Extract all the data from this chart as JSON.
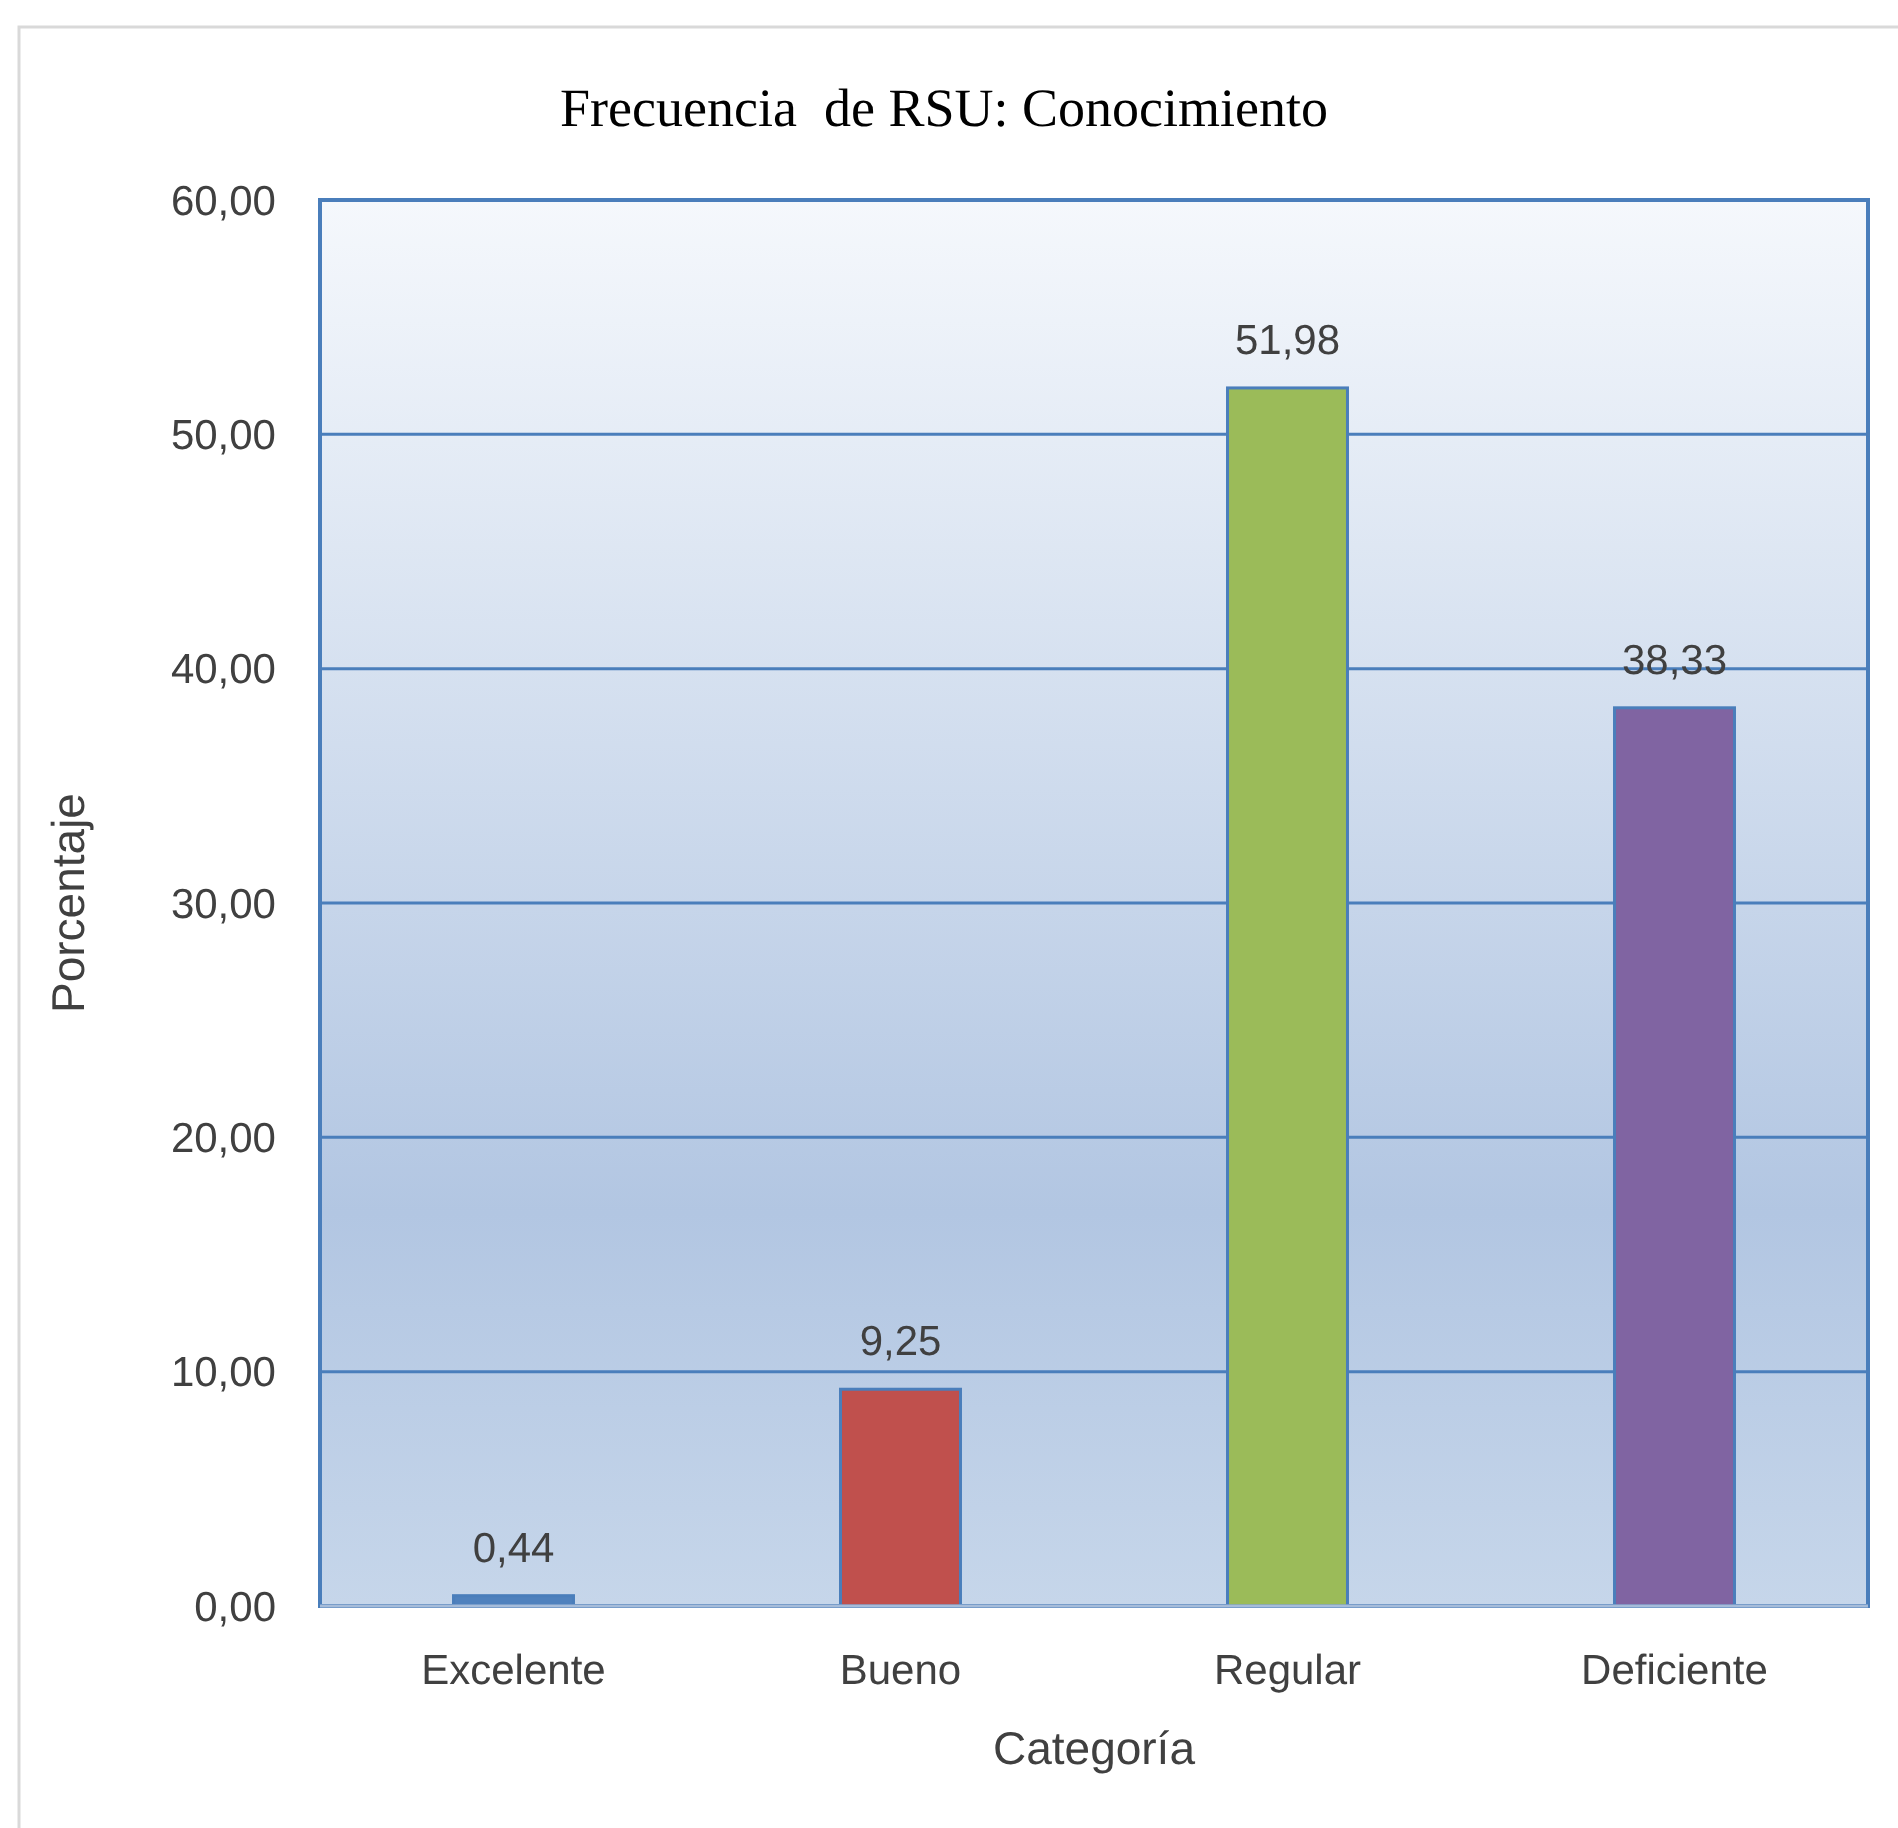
{
  "chart_data": {
    "type": "bar",
    "title": "Frecuencia  de RSU: Conocimiento",
    "xlabel": "Categoría",
    "ylabel": "Porcentaje",
    "categories": [
      "Excelente",
      "Bueno",
      "Regular",
      "Deficiente"
    ],
    "values": [
      0.44,
      9.25,
      51.98,
      38.33
    ],
    "colors": [
      "#4f81bd",
      "#c0504d",
      "#9bbb59",
      "#8064a2"
    ],
    "value_labels": [
      "0,44",
      "9,25",
      "51,98",
      "38,33"
    ],
    "ylim": [
      0,
      60
    ],
    "yticks": [
      {
        "value": 0,
        "label": "0,00"
      },
      {
        "value": 10,
        "label": "10,00"
      },
      {
        "value": 20,
        "label": "20,00"
      },
      {
        "value": 30,
        "label": "30,00"
      },
      {
        "value": 40,
        "label": "40,00"
      },
      {
        "value": 50,
        "label": "50,00"
      },
      {
        "value": 60,
        "label": "60,00"
      }
    ],
    "grid": "y"
  }
}
